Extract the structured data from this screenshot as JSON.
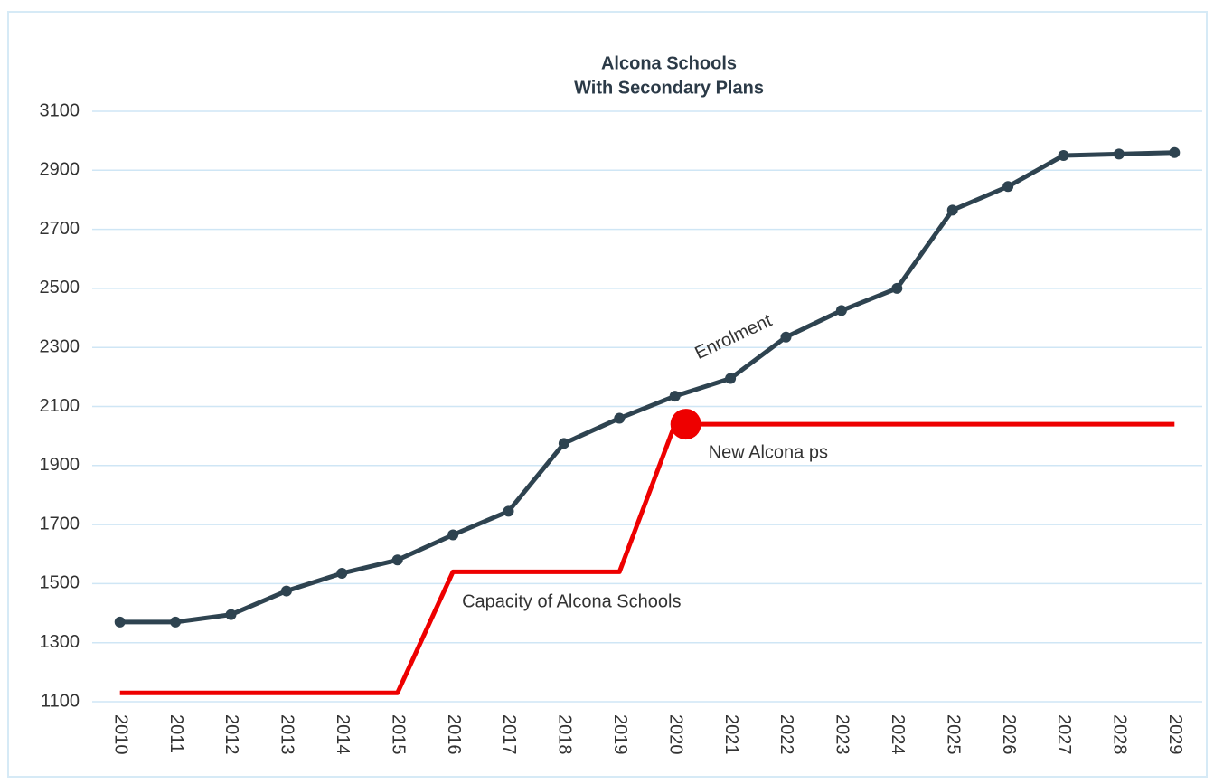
{
  "chart_data": {
    "type": "line",
    "title": "Alcona Schools",
    "subtitle": "With Secondary Plans",
    "categories": [
      "2010",
      "2011",
      "2012",
      "2013",
      "2014",
      "2015",
      "2016",
      "2017",
      "2018",
      "2019",
      "2020",
      "2021",
      "2022",
      "2023",
      "2024",
      "2025",
      "2026",
      "2027",
      "2028",
      "2029"
    ],
    "series": [
      {
        "name": "Enrolment",
        "color": "#2e4350",
        "markers": true,
        "values": [
          1370,
          1370,
          1395,
          1475,
          1535,
          1580,
          1665,
          1745,
          1975,
          2060,
          2135,
          2195,
          2335,
          2425,
          2500,
          2765,
          2845,
          2950,
          2955,
          2960
        ]
      },
      {
        "name": "Capacity of Alcona Schools",
        "color": "#ee0000",
        "markers": false,
        "values": [
          1130,
          1130,
          1130,
          1130,
          1130,
          1130,
          1540,
          1540,
          1540,
          1540,
          2040,
          2040,
          2040,
          2040,
          2040,
          2040,
          2040,
          2040,
          2040,
          2040
        ]
      }
    ],
    "annotations": [
      {
        "text": "New Alcona ps",
        "category": "2020"
      }
    ],
    "ylim": [
      1100,
      3100
    ],
    "yticks": [
      1100,
      1300,
      1500,
      1700,
      1900,
      2100,
      2300,
      2500,
      2700,
      2900,
      3100
    ],
    "grid": true
  }
}
